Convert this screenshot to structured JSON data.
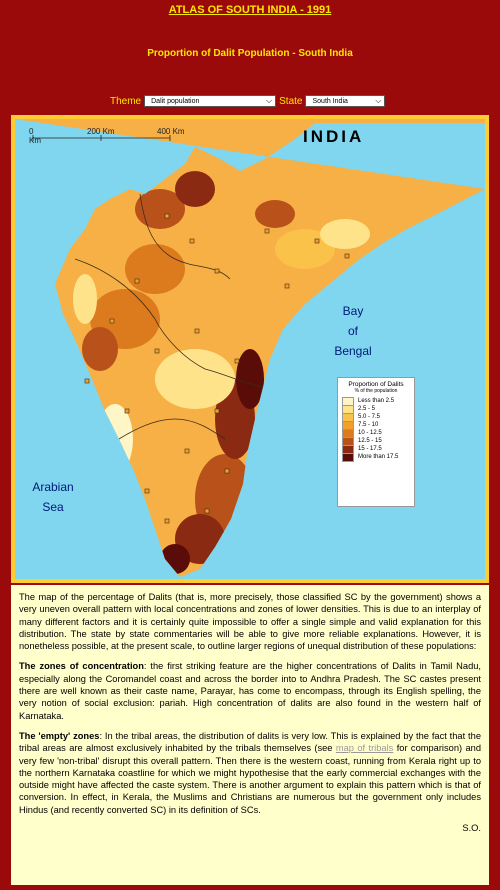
{
  "page": {
    "title": "ATLAS OF SOUTH INDIA - 1991",
    "subtitle": "Proportion of Dalit Population - South India"
  },
  "controls": {
    "theme_label": "Theme",
    "theme_value": "Dalit population",
    "state_label": "State",
    "state_value": "South India"
  },
  "map": {
    "country_label": "INDIA",
    "scale": [
      "0 Km",
      "200 Km",
      "400 Km"
    ],
    "sea_east": [
      "Bay",
      "of",
      "Bengal"
    ],
    "sea_west": [
      "Arabian",
      "Sea"
    ]
  },
  "legend": {
    "title": "Proportion of Dalits",
    "subtitle": "% of the population",
    "items": [
      {
        "label": "Less than 2.5",
        "color": "#fff6c8"
      },
      {
        "label": "2.5  -  5",
        "color": "#ffe38a"
      },
      {
        "label": "5.0  - 7.5",
        "color": "#fbc24a"
      },
      {
        "label": "7.5  - 10",
        "color": "#f2a02b"
      },
      {
        "label": "10  - 12.5",
        "color": "#dc7a1e"
      },
      {
        "label": "12.5 - 15",
        "color": "#b9521a"
      },
      {
        "label": "15  - 17.5",
        "color": "#8a2a12"
      },
      {
        "label": "More than 17.5",
        "color": "#5a0d08"
      }
    ]
  },
  "text": {
    "p1": "The map of the percentage of Dalits (that is, more precisely, those classified SC by the government) shows a very uneven overall pattern with local concentrations and zones of lower densities. This is due to an interplay of many different factors and it is certainly quite impossible to offer a single simple and valid explanation for this distribution. The state by state commentaries will be able to give more reliable explanations. However, it is nonetheless possible, at the present scale, to outline larger regions of unequal distribution of these populations:",
    "p2_lead": "The zones of concentration",
    "p2_rest": ": the first striking feature are the higher concentrations of Dalits in Tamil Nadu, especially along the Coromandel coast and across the border into to Andhra Pradesh. The SC castes present there are well known as their caste name, Parayar, has come to encompass, through its English spelling, the very notion of social exclusion: pariah. High concentration of dalits are also found in the western half of Karnataka.",
    "p3_lead": "The 'empty' zones",
    "p3_a": ": In the tribal areas, the distribution of dalits is very low. This is explained by the fact that the tribal areas are almost exclusively inhabited by the tribals themselves (see ",
    "p3_link": "map of tribals",
    "p3_b": " for comparison) and very few 'non-tribal' disrupt this overall pattern. Then there is the western coast, running from Kerala right up to the northern Karnataka coastline for which we might hypothesise that the early commercial exchanges with the outside might have affected the caste system. There is another argument to explain this pattern which is that of conversion. In effect, in Kerala, the Muslims and Christians are numerous but the government only includes Hindus (and recently converted SC) in its definition of SCs.",
    "signature": "S.O."
  }
}
